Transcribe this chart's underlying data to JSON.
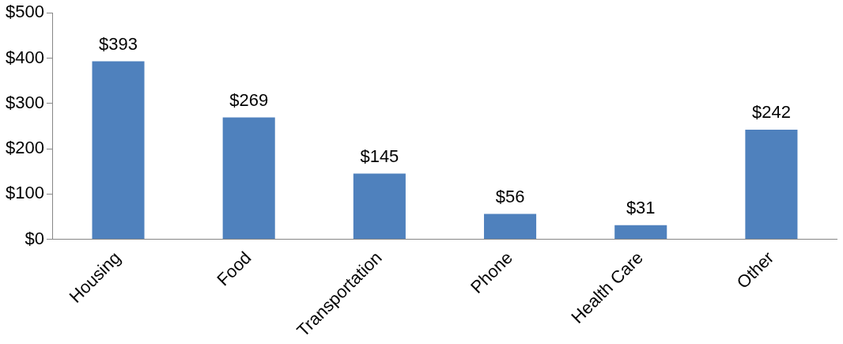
{
  "chart_data": {
    "type": "bar",
    "categories": [
      "Housing",
      "Food",
      "Transportation",
      "Phone",
      "Health Care",
      "Other"
    ],
    "values": [
      393,
      269,
      145,
      56,
      31,
      242
    ],
    "color": "#4f81bd",
    "value_labels": [
      "$393",
      "$269",
      "$145",
      "$56",
      "$31",
      "$242"
    ],
    "ylim": [
      0,
      500
    ],
    "yticks": [
      {
        "value": 0,
        "label": "$0"
      },
      {
        "value": 100,
        "label": "$100"
      },
      {
        "value": 200,
        "label": "$200"
      },
      {
        "value": 300,
        "label": "$300"
      },
      {
        "value": 400,
        "label": "$400"
      },
      {
        "value": 500,
        "label": "$500"
      }
    ],
    "grid": false,
    "legend": false
  }
}
